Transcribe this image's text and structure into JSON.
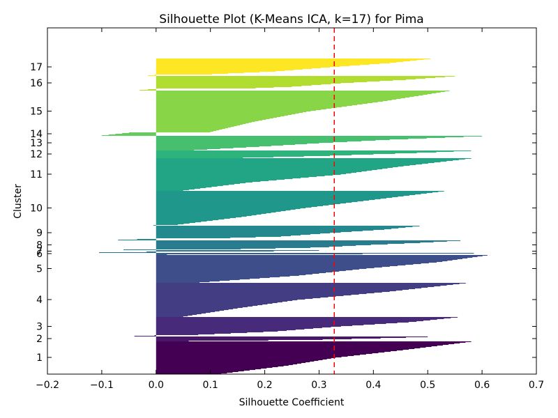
{
  "chart_data": {
    "type": "silhouette",
    "title": "Silhouette Plot (K-Means ICA, k=17) for Pima",
    "xlabel": "Silhouette Coefficient",
    "ylabel": "Cluster",
    "xlim": [
      -0.2,
      0.7
    ],
    "xticks": [
      -0.2,
      -0.1,
      0.0,
      0.1,
      0.2,
      0.3,
      0.4,
      0.5,
      0.6,
      0.7
    ],
    "average_silhouette": 0.328,
    "average_line_color": "#ff0000",
    "grid": false,
    "clusters": [
      {
        "label": "1",
        "color": "#440154",
        "max": 0.58,
        "min": 0.0,
        "min_pos": 0.12,
        "q25": 0.24,
        "q50": 0.33,
        "q75": 0.46,
        "pos_frac": 1.0
      },
      {
        "label": "2",
        "color": "#481769",
        "max": 0.5,
        "min": 0.0,
        "min_pos": 0.06,
        "q25": 0.28,
        "q50": 0.36,
        "q75": 0.44,
        "pos_frac": 1.0
      },
      {
        "label": "3",
        "color": "#472a7a",
        "max": 0.555,
        "min": -0.04,
        "min_pos": 0.05,
        "q25": 0.22,
        "q50": 0.33,
        "q75": 0.47,
        "pos_frac": 0.96
      },
      {
        "label": "4",
        "color": "#433d84",
        "max": 0.57,
        "min": 0.0,
        "min_pos": 0.05,
        "q25": 0.15,
        "q50": 0.26,
        "q75": 0.43,
        "pos_frac": 1.0
      },
      {
        "label": "5",
        "color": "#3d4e8a",
        "max": 0.61,
        "min": 0.0,
        "min_pos": 0.08,
        "q25": 0.26,
        "q50": 0.38,
        "q75": 0.52,
        "pos_frac": 1.0
      },
      {
        "label": "6",
        "color": "#355e8d",
        "max": 0.585,
        "min": 0.0,
        "min_pos": 0.02,
        "q25": 0.26,
        "q50": 0.38,
        "q75": 0.5,
        "pos_frac": 1.0
      },
      {
        "label": "7",
        "color": "#2e6d8e",
        "max": 0.3,
        "min": -0.105,
        "min_pos": 0.0,
        "q25": 0.05,
        "q50": 0.15,
        "q75": 0.25,
        "pos_frac": 0.6
      },
      {
        "label": "8",
        "color": "#297b8e",
        "max": 0.56,
        "min": -0.06,
        "min_pos": 0.15,
        "q25": 0.3,
        "q50": 0.38,
        "q75": 0.48,
        "pos_frac": 0.93
      },
      {
        "label": "9",
        "color": "#23898e",
        "max": 0.485,
        "min": -0.07,
        "min_pos": 0.09,
        "q25": 0.23,
        "q50": 0.32,
        "q75": 0.42,
        "pos_frac": 0.9
      },
      {
        "label": "10",
        "color": "#1f978b",
        "max": 0.53,
        "min": -0.005,
        "min_pos": 0.04,
        "q25": 0.16,
        "q50": 0.27,
        "q75": 0.4,
        "pos_frac": 0.98
      },
      {
        "label": "11",
        "color": "#21a585",
        "max": 0.58,
        "min": 0.0,
        "min_pos": 0.05,
        "q25": 0.17,
        "q50": 0.34,
        "q75": 0.45,
        "pos_frac": 1.0
      },
      {
        "label": "12",
        "color": "#2eb37c",
        "max": 0.58,
        "min": 0.0,
        "min_pos": 0.16,
        "q25": 0.3,
        "q50": 0.4,
        "q75": 0.5,
        "pos_frac": 1.0
      },
      {
        "label": "13",
        "color": "#46c06f",
        "max": 0.6,
        "min": 0.0,
        "min_pos": 0.07,
        "q25": 0.19,
        "q50": 0.3,
        "q75": 0.43,
        "pos_frac": 1.0
      },
      {
        "label": "14",
        "color": "#65cb5e",
        "max": 0.0,
        "min": -0.05,
        "min_pos": 0.0,
        "q25": -0.04,
        "q50": -0.03,
        "q75": -0.02,
        "pos_frac": 0.0
      },
      {
        "label": "15",
        "color": "#89d548",
        "max": 0.54,
        "min": 0.0,
        "min_pos": 0.1,
        "q25": 0.18,
        "q50": 0.28,
        "q75": 0.42,
        "pos_frac": 1.0
      },
      {
        "label": "16",
        "color": "#b0dd2f",
        "max": 0.55,
        "min": -0.03,
        "min_pos": 0.15,
        "q25": 0.25,
        "q50": 0.34,
        "q75": 0.46,
        "pos_frac": 0.9
      },
      {
        "label": "17",
        "color": "#fde725",
        "max": 0.505,
        "min": -0.015,
        "min_pos": 0.08,
        "q25": 0.22,
        "q50": 0.32,
        "q75": 0.43,
        "pos_frac": 0.95
      }
    ]
  }
}
